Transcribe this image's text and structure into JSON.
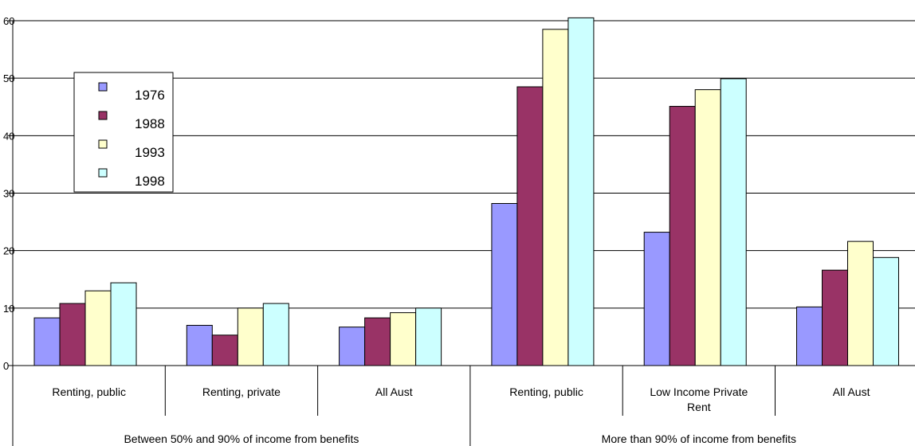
{
  "chart_data": {
    "type": "bar",
    "title": "",
    "xlabel": "",
    "ylabel": "",
    "ylim": [
      0,
      60
    ],
    "yticks": [
      "0",
      "10",
      "20",
      "30",
      "40",
      "50",
      "60"
    ],
    "grid": true,
    "legend_position": "top-left",
    "groups": [
      {
        "label": "Between 50% and 90% of income from benefits",
        "categories": [
          {
            "label": "Renting, public",
            "lines": [
              "Renting, public"
            ]
          },
          {
            "label": "Renting, private",
            "lines": [
              "Renting, private"
            ]
          },
          {
            "label": "All Aust",
            "lines": [
              "All Aust"
            ]
          }
        ]
      },
      {
        "label": "More than 90% of income from benefits",
        "categories": [
          {
            "label": "Renting, public",
            "lines": [
              "Renting, public"
            ]
          },
          {
            "label": "Low Income Private Rent",
            "lines": [
              "Low Income Private",
              "Rent"
            ]
          },
          {
            "label": "All Aust",
            "lines": [
              "All Aust"
            ]
          }
        ]
      }
    ],
    "series": [
      {
        "name": "1976",
        "color": "#9999ff",
        "values": [
          8.3,
          7.0,
          6.7,
          28.2,
          23.2,
          10.2
        ]
      },
      {
        "name": "1988",
        "color": "#993366",
        "values": [
          10.8,
          5.3,
          8.3,
          48.5,
          45.1,
          16.6
        ]
      },
      {
        "name": "1993",
        "color": "#ffffcc",
        "values": [
          13.0,
          10.0,
          9.2,
          58.5,
          48.0,
          21.6
        ]
      },
      {
        "name": "1998",
        "color": "#ccffff",
        "values": [
          14.4,
          10.8,
          10.0,
          60.5,
          49.9,
          18.8
        ]
      }
    ]
  }
}
